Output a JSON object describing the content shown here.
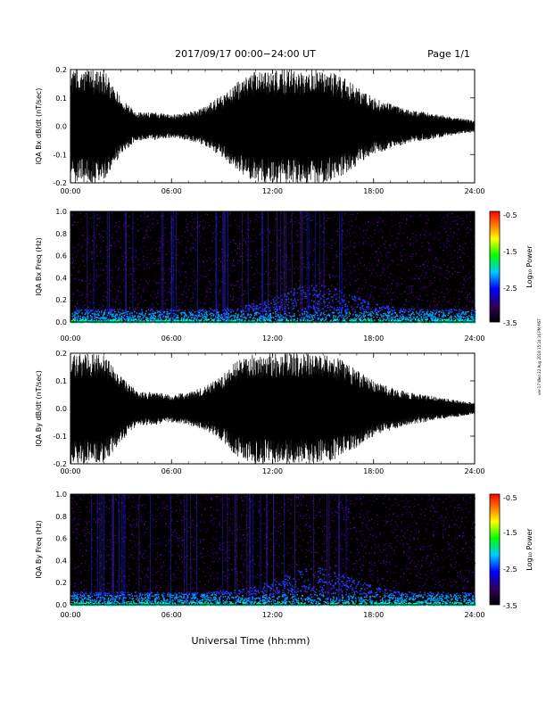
{
  "header": {
    "date_range": "2017/09/17  00:00−24:00 UT",
    "page": "Page 1/1"
  },
  "footer": {
    "xlabel": "Universal Time (hh:mm)",
    "stamp": "ver-17 Wed 22 Aug 2018 15:24:16 PM MST"
  },
  "colors": {
    "background": "#ffffff",
    "trace": "#000000",
    "spectrogram_floor": "#000000"
  },
  "colorbar": {
    "label": "Log₁₀ Power",
    "ticks": [
      "-0.5",
      "-1.5",
      "-2.5",
      "-3.5"
    ],
    "range": [
      -3.5,
      -0.5
    ],
    "colormap": [
      "#000000",
      "#30005a",
      "#0000ff",
      "#00c8ff",
      "#00ff00",
      "#ffff00",
      "#ff7f00",
      "#ff0000"
    ]
  },
  "chart_data": [
    {
      "type": "line",
      "ylabel": "IQA Bx dB/dt (nT/sec)",
      "xlim": [
        0,
        24
      ],
      "ylim": [
        -0.2,
        0.2
      ],
      "x_ticks": [
        "00:00",
        "06:00",
        "12:00",
        "18:00",
        "24:00"
      ],
      "y_ticks": [
        "0.2",
        "0.1",
        "0.0",
        "-0.1",
        "-0.2"
      ],
      "envelope_hours": [
        0,
        1,
        2,
        3,
        4,
        5,
        6,
        7,
        8,
        9,
        10,
        11,
        12,
        13,
        14,
        15,
        16,
        17,
        18,
        19,
        20,
        21,
        22,
        23,
        24
      ],
      "envelope_amplitude": [
        0.2,
        0.2,
        0.2,
        0.1,
        0.05,
        0.05,
        0.04,
        0.05,
        0.07,
        0.11,
        0.16,
        0.2,
        0.2,
        0.2,
        0.2,
        0.2,
        0.18,
        0.14,
        0.1,
        0.08,
        0.06,
        0.05,
        0.04,
        0.03,
        0.02
      ]
    },
    {
      "type": "heatmap",
      "ylabel": "IQA Bx Freq (Hz)",
      "xlim": [
        0,
        24
      ],
      "ylim": [
        0.0,
        1.0
      ],
      "x_ticks": [
        "00:00",
        "06:00",
        "12:00",
        "18:00",
        "24:00"
      ],
      "y_ticks": [
        "1.0",
        "0.8",
        "0.6",
        "0.4",
        "0.2",
        "0.0"
      ],
      "colorbar_label": "Log₁₀ Power",
      "colorbar_ticks": [
        "-0.5",
        "-1.5",
        "-2.5",
        "-3.5"
      ]
    },
    {
      "type": "line",
      "ylabel": "IQA By dB/dt (nT/sec)",
      "xlim": [
        0,
        24
      ],
      "ylim": [
        -0.2,
        0.2
      ],
      "x_ticks": [
        "00:00",
        "06:00",
        "12:00",
        "18:00",
        "24:00"
      ],
      "y_ticks": [
        "0.2",
        "0.1",
        "0.0",
        "-0.1",
        "-0.2"
      ],
      "envelope_hours": [
        0,
        1,
        2,
        3,
        4,
        5,
        6,
        7,
        8,
        9,
        10,
        11,
        12,
        13,
        14,
        15,
        16,
        17,
        18,
        19,
        20,
        21,
        22,
        23,
        24
      ],
      "envelope_amplitude": [
        0.2,
        0.2,
        0.2,
        0.12,
        0.06,
        0.06,
        0.05,
        0.06,
        0.08,
        0.12,
        0.18,
        0.2,
        0.2,
        0.2,
        0.2,
        0.2,
        0.18,
        0.14,
        0.1,
        0.08,
        0.06,
        0.05,
        0.04,
        0.03,
        0.02
      ]
    },
    {
      "type": "heatmap",
      "ylabel": "IQA By Freq (Hz)",
      "xlim": [
        0,
        24
      ],
      "ylim": [
        0.0,
        1.0
      ],
      "x_ticks": [
        "00:00",
        "06:00",
        "12:00",
        "18:00",
        "24:00"
      ],
      "y_ticks": [
        "1.0",
        "0.8",
        "0.6",
        "0.4",
        "0.2",
        "0.0"
      ],
      "colorbar_label": "Log₁₀ Power",
      "colorbar_ticks": [
        "-0.5",
        "-1.5",
        "-2.5",
        "-3.5"
      ]
    }
  ]
}
